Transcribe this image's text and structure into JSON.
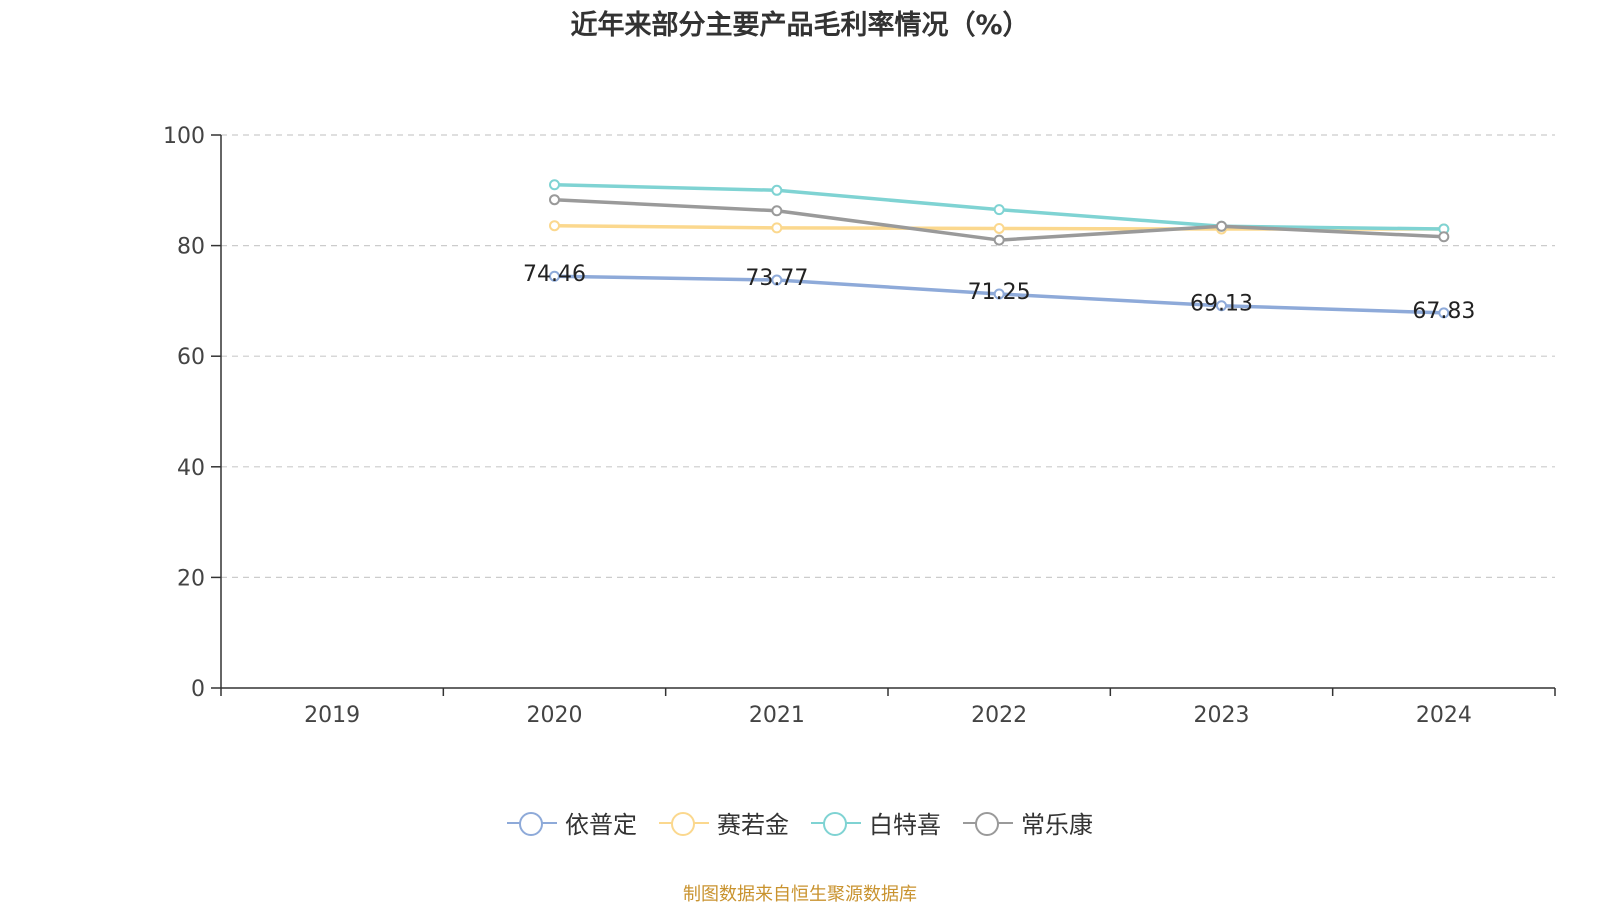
{
  "chart_data": {
    "type": "line",
    "title": "近年来部分主要产品毛利率情况（%）",
    "categories": [
      "2019",
      "2020",
      "2021",
      "2022",
      "2023",
      "2024"
    ],
    "ylim": [
      0,
      100
    ],
    "yticks": [
      0,
      20,
      40,
      60,
      80,
      100
    ],
    "grid": true,
    "legend_position": "bottom",
    "series": [
      {
        "name": "依普定",
        "color": "#8eaad9",
        "values": [
          null,
          74.46,
          73.77,
          71.25,
          69.13,
          67.83
        ],
        "labels": [
          "",
          "74.46",
          "73.77",
          "71.25",
          "69.13",
          "67.83"
        ]
      },
      {
        "name": "赛若金",
        "color": "#fbd88e",
        "values": [
          null,
          83.6,
          83.2,
          83.1,
          83.0,
          83.0
        ]
      },
      {
        "name": "白特喜",
        "color": "#7fd3d3",
        "values": [
          null,
          91.0,
          90.0,
          86.5,
          83.5,
          83.0
        ]
      },
      {
        "name": "常乐康",
        "color": "#9a9a9a",
        "values": [
          null,
          88.3,
          86.3,
          81.0,
          83.5,
          81.6
        ]
      }
    ]
  },
  "source_note": "制图数据来自恒生聚源数据库"
}
